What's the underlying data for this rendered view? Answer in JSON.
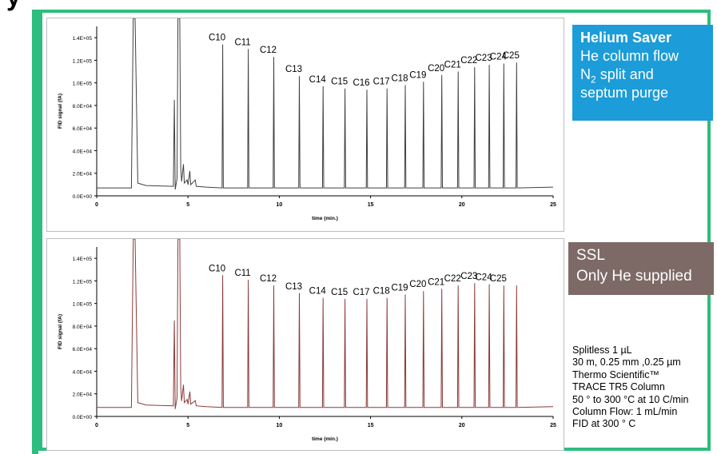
{
  "chart_data": [
    {
      "type": "line",
      "xlabel": "time (min.)",
      "ylabel": "FID signal (fA)",
      "xlim": [
        0,
        25
      ],
      "ylim": [
        0,
        150000
      ],
      "x_ticks": [
        "0",
        "5",
        "10",
        "15",
        "20",
        "25"
      ],
      "y_ticks": [
        "0.0E+00",
        "2.0E+04",
        "4.0E+04",
        "6.0E+04",
        "8.0E+04",
        "1.0E+05",
        "1.2E+05",
        "1.4E+05"
      ],
      "y_tick_values": [
        0,
        20000,
        40000,
        60000,
        80000,
        100000,
        120000,
        140000
      ],
      "baseline": 7000,
      "line_color": "#404040",
      "peaks": [
        {
          "label": "C10",
          "x": 6.9,
          "y": 134000
        },
        {
          "label": "C11",
          "x": 8.3,
          "y": 130000
        },
        {
          "label": "C12",
          "x": 9.7,
          "y": 123000
        },
        {
          "label": "C13",
          "x": 11.1,
          "y": 106000
        },
        {
          "label": "C14",
          "x": 12.4,
          "y": 97000
        },
        {
          "label": "C15",
          "x": 13.6,
          "y": 95000
        },
        {
          "label": "C16",
          "x": 14.8,
          "y": 94000
        },
        {
          "label": "C17",
          "x": 15.9,
          "y": 95000
        },
        {
          "label": "C18",
          "x": 16.9,
          "y": 98000
        },
        {
          "label": "C19",
          "x": 17.9,
          "y": 101000
        },
        {
          "label": "C20",
          "x": 18.9,
          "y": 107000
        },
        {
          "label": "C21",
          "x": 19.8,
          "y": 110000
        },
        {
          "label": "C22",
          "x": 20.7,
          "y": 114000
        },
        {
          "label": "C23",
          "x": 21.5,
          "y": 116000
        },
        {
          "label": "C24",
          "x": 22.3,
          "y": 117000
        },
        {
          "label": "C25",
          "x": 23.0,
          "y": 118000
        }
      ]
    },
    {
      "type": "line",
      "xlabel": "time (min.)",
      "ylabel": "FID signal (fA)",
      "xlim": [
        0,
        25
      ],
      "ylim": [
        0,
        150000
      ],
      "x_ticks": [
        "0",
        "5",
        "10",
        "15",
        "20",
        "25"
      ],
      "y_ticks": [
        "0.0E+00",
        "2.0E+04",
        "4.0E+04",
        "6.0E+04",
        "8.0E+04",
        "1.0E+05",
        "1.2E+05",
        "1.4E+05"
      ],
      "y_tick_values": [
        0,
        20000,
        40000,
        60000,
        80000,
        100000,
        120000,
        140000
      ],
      "baseline": 8000,
      "line_color": "#8b3a3a",
      "peaks": [
        {
          "label": "C10",
          "x": 6.9,
          "y": 125000
        },
        {
          "label": "C11",
          "x": 8.3,
          "y": 121000
        },
        {
          "label": "C12",
          "x": 9.7,
          "y": 116000
        },
        {
          "label": "C13",
          "x": 11.1,
          "y": 109000
        },
        {
          "label": "C14",
          "x": 12.4,
          "y": 105000
        },
        {
          "label": "C15",
          "x": 13.6,
          "y": 104000
        },
        {
          "label": "C17",
          "x": 14.8,
          "y": 104000
        },
        {
          "label": "C18",
          "x": 15.9,
          "y": 105000
        },
        {
          "label": "C19",
          "x": 16.9,
          "y": 108000
        },
        {
          "label": "C20",
          "x": 17.9,
          "y": 111000
        },
        {
          "label": "C21",
          "x": 18.9,
          "y": 113000
        },
        {
          "label": "C22",
          "x": 19.8,
          "y": 116000
        },
        {
          "label": "C23",
          "x": 20.7,
          "y": 118000
        },
        {
          "label": "C24",
          "x": 21.5,
          "y": 117000
        },
        {
          "label": "C25",
          "x": 22.3,
          "y": 116000
        },
        {
          "label": "",
          "x": 23.0,
          "y": 116000
        }
      ]
    }
  ],
  "header": {
    "title": "y"
  },
  "box1": {
    "title": "Helium Saver",
    "line2": "He  column flow",
    "line3_prefix": "N",
    "line3_sub": "2",
    "line3_suffix": " split and",
    "line4": "septum purge",
    "color": "#1c9cd8"
  },
  "box2": {
    "line1": "SSL",
    "line2": "Only He supplied",
    "color": "#7d6a66"
  },
  "conditions": [
    "Splitless 1 µL",
    "30 m, 0.25 mm ,0.25 µm",
    "Thermo Scientific™",
    "TRACE TR5 Column",
    "50 ° to 300 °C at 10 C/min",
    "Column Flow: 1 mL/min",
    "FID at 300 °  C"
  ],
  "frame_color": "#2dbd7e"
}
